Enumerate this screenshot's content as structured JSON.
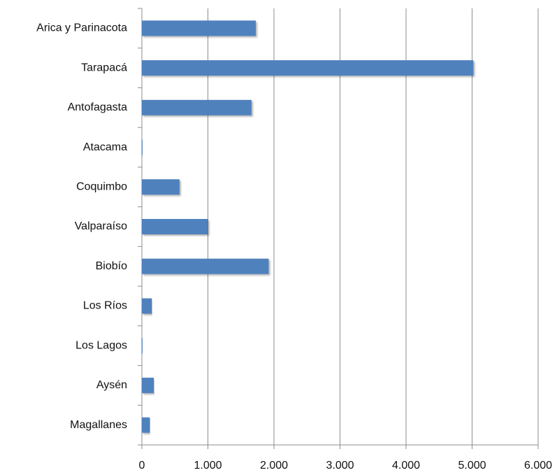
{
  "chart_data": {
    "type": "bar",
    "orientation": "horizontal",
    "categories": [
      "Arica y Parinacota",
      "Tarapacá",
      "Antofagasta",
      "Atacama",
      "Coquimbo",
      "Valparaíso",
      "Biobío",
      "Los Ríos",
      "Los Lagos",
      "Aysén",
      "Magallanes"
    ],
    "values": [
      1725,
      5020,
      1660,
      10,
      570,
      1000,
      1920,
      150,
      10,
      180,
      120
    ],
    "color": "#4f81bd",
    "xlim": [
      0,
      6000
    ],
    "xticks": [
      0,
      {
        "value": 1000,
        "label": "1.000"
      },
      {
        "value": 2000,
        "label": "2.000"
      },
      {
        "value": 3000,
        "label": "3.000"
      },
      {
        "value": 4000,
        "label": "4.000"
      },
      {
        "value": 5000,
        "label": "5.000"
      },
      {
        "value": 6000,
        "label": "6.000"
      }
    ],
    "grid": true
  }
}
